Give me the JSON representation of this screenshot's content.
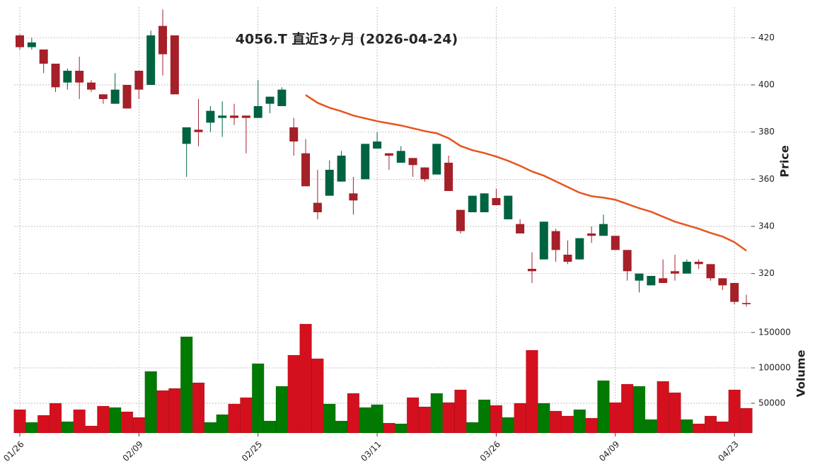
{
  "chart_data": {
    "type": "candlestick",
    "title": "4056.T  直近3ヶ月  (2026-04-24)",
    "categories": [
      "01/26",
      null,
      null,
      null,
      null,
      null,
      null,
      null,
      null,
      null,
      "02/09",
      null,
      null,
      null,
      null,
      null,
      null,
      null,
      null,
      null,
      "02/25",
      null,
      null,
      null,
      null,
      null,
      null,
      null,
      null,
      null,
      "03/11",
      null,
      null,
      null,
      null,
      null,
      null,
      null,
      null,
      null,
      "03/26",
      null,
      null,
      null,
      null,
      null,
      null,
      null,
      null,
      null,
      "04/09",
      null,
      null,
      null,
      null,
      null,
      null,
      null,
      null,
      null,
      "04/23",
      null
    ],
    "open": [
      421,
      416,
      415,
      409,
      401,
      406,
      401,
      396,
      392,
      400,
      406,
      400,
      425,
      421,
      375,
      381,
      384,
      386,
      387,
      387,
      386,
      392,
      391,
      382,
      371,
      350,
      353,
      359,
      354,
      360,
      373,
      371,
      367,
      369,
      365,
      362,
      367,
      347,
      346,
      346,
      352,
      343,
      341,
      322,
      326,
      338,
      328,
      326,
      337,
      336,
      336,
      330,
      317,
      315,
      318,
      321,
      320,
      325,
      324,
      318,
      316,
      307.5
    ],
    "high": [
      421.5,
      420,
      415,
      409,
      407,
      412,
      402,
      396,
      405,
      400,
      406,
      423,
      432,
      421,
      382,
      394,
      391,
      393,
      392,
      387,
      402,
      395,
      399,
      386,
      377,
      364,
      368,
      372,
      361,
      375,
      380,
      371,
      374,
      369,
      365,
      375,
      370,
      347,
      353,
      354,
      356,
      353,
      343,
      329,
      342,
      339,
      334,
      335,
      340,
      345,
      336,
      330,
      320,
      319,
      326,
      328,
      326,
      326,
      324,
      318,
      316,
      311
    ],
    "low": [
      415,
      415,
      405,
      397,
      398,
      394,
      397,
      392,
      392,
      390,
      394,
      400,
      404,
      396,
      361,
      374,
      380,
      378,
      383,
      371,
      386,
      388,
      391,
      370,
      357,
      343,
      353,
      359,
      345,
      360,
      373,
      364,
      367,
      361,
      359,
      362,
      355,
      337,
      346,
      346,
      349,
      343,
      337,
      316,
      326,
      325,
      324,
      326,
      333,
      336,
      330,
      317,
      312,
      315,
      316,
      317,
      320,
      322,
      317,
      313,
      307,
      306
    ],
    "close": [
      416,
      418,
      409,
      399,
      406,
      401,
      398,
      394,
      398,
      390,
      398,
      421,
      413,
      396,
      382,
      380,
      389,
      387,
      386,
      386,
      391,
      395,
      398,
      376,
      357,
      346,
      364,
      370,
      351,
      375,
      376,
      370,
      372,
      366,
      360,
      375,
      355,
      338,
      353,
      354,
      349,
      353,
      337,
      321,
      342,
      330,
      325,
      335,
      336,
      341,
      330,
      321,
      320,
      319,
      316,
      320,
      325,
      324,
      318,
      315,
      308,
      307
    ],
    "up_color": "#006340",
    "down_color": "#a52029",
    "ma": {
      "color": "#e8541d",
      "values": [
        null,
        null,
        null,
        null,
        null,
        null,
        null,
        null,
        null,
        null,
        null,
        null,
        null,
        null,
        null,
        null,
        null,
        null,
        null,
        null,
        null,
        null,
        null,
        null,
        395.7,
        392.4,
        390.3,
        388.8,
        387,
        385.8,
        384.6,
        383.7,
        382.8,
        381.6,
        380.4,
        379.5,
        377.4,
        374.1,
        372.3,
        371.1,
        369.6,
        367.8,
        365.7,
        363.3,
        361.5,
        359.1,
        356.7,
        354.3,
        352.8,
        352.2,
        351.3,
        349.5,
        347.7,
        346.2,
        344.1,
        342,
        340.5,
        339,
        337.2,
        335.7,
        333.3,
        329.7
      ]
    },
    "ylim": [
      304,
      433
    ],
    "yticks": [
      320,
      340,
      360,
      380,
      400,
      420
    ],
    "ylabel": "Price",
    "grid": true,
    "volume": {
      "values": [
        41000,
        23000,
        33000,
        50000,
        24000,
        41000,
        18000,
        46000,
        44000,
        38000,
        30000,
        95000,
        68000,
        71000,
        144000,
        79000,
        23000,
        34000,
        49000,
        58000,
        106000,
        25000,
        74000,
        118000,
        162000,
        113000,
        49000,
        25000,
        64000,
        44000,
        48000,
        22000,
        21000,
        58000,
        45000,
        64000,
        51000,
        69000,
        23000,
        55000,
        47000,
        30000,
        50000,
        125000,
        50000,
        39000,
        32000,
        41000,
        29000,
        82000,
        51000,
        77000,
        74000,
        27000,
        81000,
        65000,
        27000,
        21000,
        32000,
        24000,
        69000,
        43000
      ],
      "up_color": "#007a00",
      "down_color": "#d4101e",
      "ylim": [
        8000,
        175000
      ],
      "yticks": [
        50000,
        100000,
        150000
      ],
      "ylabel": "Volume"
    }
  }
}
